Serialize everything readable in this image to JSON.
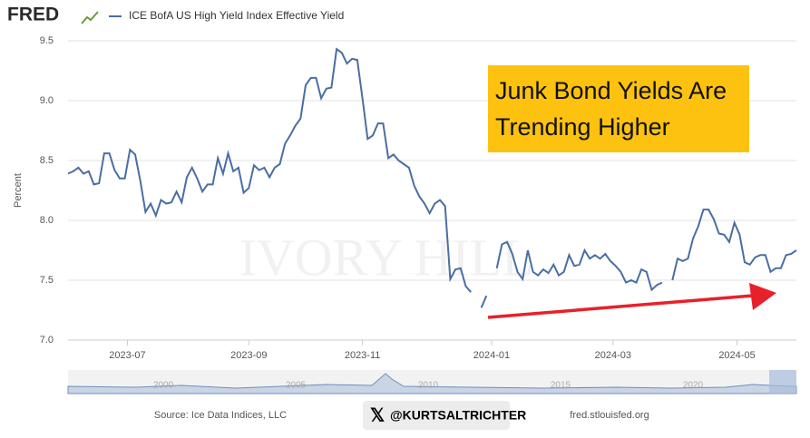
{
  "chart_data": {
    "type": "line",
    "logo": "FRED",
    "y_label": "Percent",
    "annotation": [
      "Junk Bond Yields Are",
      "Trending Higher"
    ],
    "watermark": "IVORY HILL",
    "series": [
      {
        "name": "ICE BofA US High Yield Index Effective Yield",
        "color": "#4a6ea3",
        "values": [
          8.39,
          8.41,
          8.44,
          8.39,
          8.41,
          8.3,
          8.31,
          8.56,
          8.56,
          8.42,
          8.35,
          8.35,
          8.59,
          8.55,
          8.33,
          8.07,
          8.14,
          8.04,
          8.17,
          8.14,
          8.15,
          8.24,
          8.15,
          8.36,
          8.44,
          8.35,
          8.24,
          8.3,
          8.3,
          8.52,
          8.39,
          8.56,
          8.41,
          8.44,
          8.23,
          8.27,
          8.46,
          8.42,
          8.44,
          8.36,
          8.44,
          8.47,
          8.64,
          8.71,
          8.79,
          8.85,
          9.13,
          9.19,
          9.19,
          9.02,
          9.1,
          9.11,
          9.43,
          9.4,
          9.31,
          9.35,
          9.34,
          9.02,
          8.68,
          8.71,
          8.81,
          8.81,
          8.52,
          8.55,
          8.5,
          8.47,
          8.44,
          8.29,
          8.2,
          8.14,
          8.06,
          8.14,
          8.17,
          8.12,
          7.51,
          7.59,
          7.6,
          7.45,
          7.4,
          null,
          7.27,
          7.37,
          null,
          7.6,
          7.8,
          7.82,
          7.72,
          7.57,
          7.51,
          7.75,
          7.57,
          7.54,
          7.59,
          7.56,
          7.63,
          7.54,
          7.57,
          7.71,
          7.62,
          7.63,
          7.75,
          7.68,
          7.71,
          7.68,
          7.72,
          7.66,
          7.62,
          7.57,
          7.48,
          7.5,
          7.48,
          7.59,
          7.57,
          7.42,
          7.46,
          7.48,
          null,
          7.5,
          7.68,
          7.66,
          7.68,
          7.85,
          7.95,
          8.09,
          8.09,
          8.01,
          7.89,
          7.88,
          7.82,
          7.98,
          7.88,
          7.65,
          7.63,
          7.69,
          7.71,
          7.71,
          7.57,
          7.6,
          7.6,
          7.71,
          7.72,
          7.75
        ]
      }
    ],
    "xlim": [
      0,
      141
    ],
    "xticks": [
      {
        "value": 11.5,
        "label": "2023-07"
      },
      {
        "value": 35,
        "label": "2023-09"
      },
      {
        "value": 57,
        "label": "2023-11"
      },
      {
        "value": 82,
        "label": "2024-01"
      },
      {
        "value": 105.5,
        "label": "2024-03"
      },
      {
        "value": 129.5,
        "label": "2024-05"
      }
    ],
    "ylim": [
      7,
      9.5
    ],
    "yticks": [
      {
        "value": 7,
        "label": "7.0"
      },
      7.5,
      {
        "value": 8,
        "label": "8.0"
      },
      8.5,
      {
        "value": 9,
        "label": "9.0"
      },
      9.5
    ],
    "grid": true,
    "navigator_labels": [
      "2000",
      "2005",
      "2010",
      "2015",
      "2020"
    ],
    "source": "Source: Ice Data Indices, LLC",
    "credit": "@KURTSALTRICHTER",
    "site": "fred.stlouisfed.org"
  }
}
